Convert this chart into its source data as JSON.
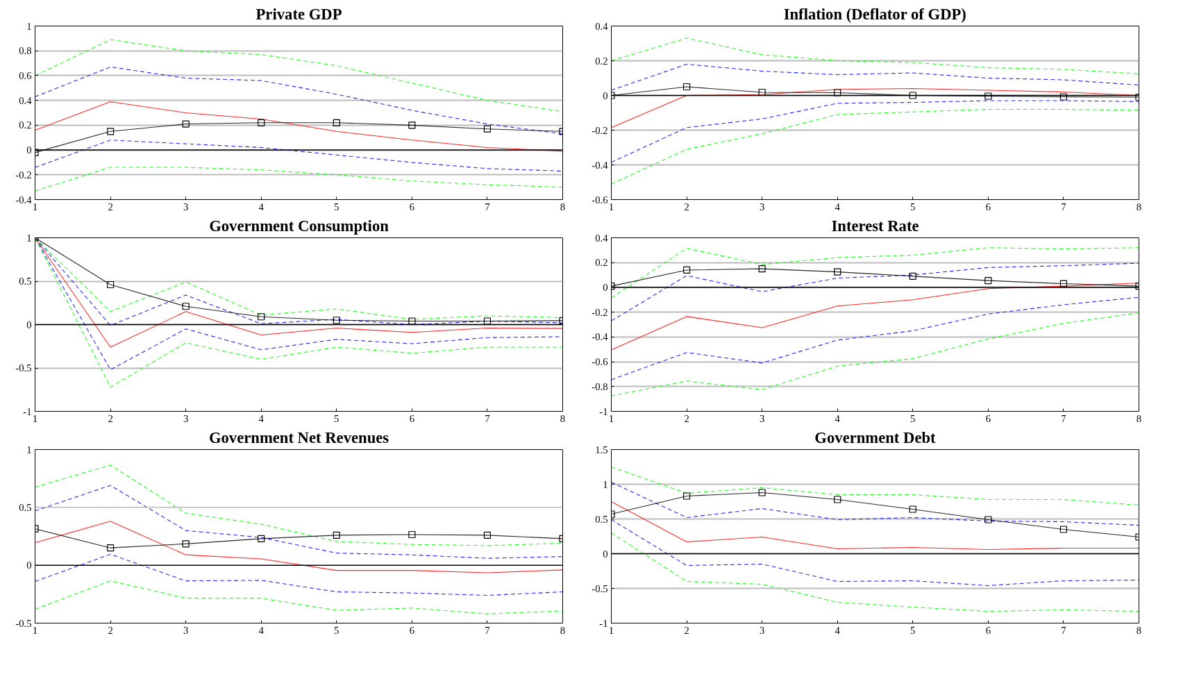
{
  "chart_data": [
    {
      "type": "line",
      "title": "Private GDP",
      "x": [
        1,
        2,
        3,
        4,
        5,
        6,
        7,
        8
      ],
      "xlim": [
        1,
        8
      ],
      "xticks": [
        1,
        2,
        3,
        4,
        5,
        6,
        7,
        8
      ],
      "ylim": [
        -0.4,
        1
      ],
      "yticks": [
        -0.4,
        -0.2,
        0,
        0.2,
        0.4,
        0.6,
        0.8,
        1
      ],
      "grid": "y",
      "ref_lines": [
        {
          "axis": "y",
          "value": 0,
          "color": "#000000"
        }
      ],
      "series": [
        {
          "color": "#00ff00",
          "line_style": "dashed",
          "marker": "none",
          "values": [
            0.6,
            0.89,
            0.8,
            0.77,
            0.68,
            0.54,
            0.4,
            0.31
          ]
        },
        {
          "color": "#0000ff",
          "line_style": "dashed",
          "marker": "none",
          "values": [
            0.43,
            0.67,
            0.58,
            0.56,
            0.45,
            0.32,
            0.21,
            0.13
          ]
        },
        {
          "color": "#ff0000",
          "line_style": "solid",
          "marker": "none",
          "values": [
            0.16,
            0.39,
            0.3,
            0.25,
            0.15,
            0.08,
            0.02,
            -0.01
          ]
        },
        {
          "color": "#000000",
          "line_style": "solid",
          "marker": "square",
          "values": [
            -0.02,
            0.15,
            0.21,
            0.22,
            0.22,
            0.2,
            0.17,
            0.15
          ]
        },
        {
          "color": "#0000ff",
          "line_style": "dashed",
          "marker": "none",
          "values": [
            -0.14,
            0.08,
            0.05,
            0.02,
            -0.04,
            -0.1,
            -0.15,
            -0.17
          ]
        },
        {
          "color": "#00ff00",
          "line_style": "dashed",
          "marker": "none",
          "values": [
            -0.33,
            -0.14,
            -0.14,
            -0.16,
            -0.2,
            -0.25,
            -0.28,
            -0.3
          ]
        }
      ]
    },
    {
      "type": "line",
      "title": "Inflation (Deflator of GDP)",
      "x": [
        1,
        2,
        3,
        4,
        5,
        6,
        7,
        8
      ],
      "xlim": [
        1,
        8
      ],
      "xticks": [
        1,
        2,
        3,
        4,
        5,
        6,
        7,
        8
      ],
      "ylim": [
        -0.6,
        0.4
      ],
      "yticks": [
        -0.6,
        -0.4,
        -0.2,
        0,
        0.2,
        0.4
      ],
      "grid": "y",
      "ref_lines": [
        {
          "axis": "y",
          "value": 0,
          "color": "#000000"
        }
      ],
      "series": [
        {
          "color": "#00ff00",
          "line_style": "dashed",
          "marker": "none",
          "values": [
            0.2,
            0.33,
            0.235,
            0.2,
            0.19,
            0.16,
            0.15,
            0.125
          ]
        },
        {
          "color": "#0000ff",
          "line_style": "dashed",
          "marker": "none",
          "values": [
            0.03,
            0.18,
            0.14,
            0.12,
            0.13,
            0.1,
            0.09,
            0.06
          ]
        },
        {
          "color": "#ff0000",
          "line_style": "solid",
          "marker": "none",
          "values": [
            -0.185,
            0.0,
            0.005,
            0.035,
            0.04,
            0.03,
            0.02,
            0.0
          ]
        },
        {
          "color": "#000000",
          "line_style": "solid",
          "marker": "square",
          "values": [
            0.0,
            0.05,
            0.018,
            0.016,
            0.0,
            -0.004,
            -0.008,
            -0.01
          ]
        },
        {
          "color": "#0000ff",
          "line_style": "dashed",
          "marker": "none",
          "values": [
            -0.385,
            -0.185,
            -0.135,
            -0.045,
            -0.04,
            -0.03,
            -0.03,
            -0.035
          ]
        },
        {
          "color": "#00ff00",
          "line_style": "dashed",
          "marker": "none",
          "values": [
            -0.51,
            -0.31,
            -0.22,
            -0.11,
            -0.095,
            -0.08,
            -0.08,
            -0.085
          ]
        }
      ]
    },
    {
      "type": "line",
      "title": "Government Consumption",
      "x": [
        1,
        2,
        3,
        4,
        5,
        6,
        7,
        8
      ],
      "xlim": [
        1,
        8
      ],
      "xticks": [
        1,
        2,
        3,
        4,
        5,
        6,
        7,
        8
      ],
      "ylim": [
        -1,
        1
      ],
      "yticks": [
        -1,
        -0.5,
        0,
        0.5,
        1
      ],
      "grid": "y",
      "ref_lines": [
        {
          "axis": "y",
          "value": 0,
          "color": "#000000"
        }
      ],
      "series": [
        {
          "color": "#00ff00",
          "line_style": "dashed",
          "marker": "none",
          "values": [
            1.0,
            0.15,
            0.49,
            0.11,
            0.18,
            0.06,
            0.1,
            0.08
          ]
        },
        {
          "color": "#0000ff",
          "line_style": "dashed",
          "marker": "none",
          "values": [
            1.0,
            -0.01,
            0.34,
            0.01,
            0.06,
            0.0,
            0.04,
            0.02
          ]
        },
        {
          "color": "#ff0000",
          "line_style": "solid",
          "marker": "none",
          "values": [
            1.0,
            -0.26,
            0.15,
            -0.12,
            -0.04,
            -0.09,
            -0.04,
            -0.045
          ]
        },
        {
          "color": "#000000",
          "line_style": "solid",
          "marker": "square",
          "values": [
            1.0,
            0.46,
            0.21,
            0.09,
            0.05,
            0.04,
            0.04,
            0.045
          ]
        },
        {
          "color": "#0000ff",
          "line_style": "dashed",
          "marker": "none",
          "values": [
            1.0,
            -0.52,
            -0.05,
            -0.29,
            -0.17,
            -0.22,
            -0.15,
            -0.14
          ]
        },
        {
          "color": "#00ff00",
          "line_style": "dashed",
          "marker": "none",
          "values": [
            1.0,
            -0.72,
            -0.21,
            -0.4,
            -0.26,
            -0.33,
            -0.26,
            -0.26
          ]
        }
      ]
    },
    {
      "type": "line",
      "title": "Interest Rate",
      "x": [
        1,
        2,
        3,
        4,
        5,
        6,
        7,
        8
      ],
      "xlim": [
        1,
        8
      ],
      "xticks": [
        1,
        2,
        3,
        4,
        5,
        6,
        7,
        8
      ],
      "ylim": [
        -1,
        0.4
      ],
      "yticks": [
        -1,
        -0.8,
        -0.6,
        -0.4,
        -0.2,
        0,
        0.2,
        0.4
      ],
      "grid": "y",
      "ref_lines": [
        {
          "axis": "y",
          "value": 0,
          "color": "#000000"
        }
      ],
      "series": [
        {
          "color": "#00ff00",
          "line_style": "dashed",
          "marker": "none",
          "values": [
            -0.085,
            0.315,
            0.185,
            0.24,
            0.26,
            0.32,
            0.31,
            0.32
          ]
        },
        {
          "color": "#0000ff",
          "line_style": "dashed",
          "marker": "none",
          "values": [
            -0.27,
            0.095,
            -0.035,
            0.075,
            0.1,
            0.16,
            0.175,
            0.195
          ]
        },
        {
          "color": "#ff0000",
          "line_style": "solid",
          "marker": "none",
          "values": [
            -0.505,
            -0.235,
            -0.325,
            -0.15,
            -0.1,
            -0.01,
            0.01,
            0.035
          ]
        },
        {
          "color": "#000000",
          "line_style": "solid",
          "marker": "square",
          "values": [
            0.01,
            0.14,
            0.15,
            0.125,
            0.09,
            0.055,
            0.03,
            0.01
          ]
        },
        {
          "color": "#0000ff",
          "line_style": "dashed",
          "marker": "none",
          "values": [
            -0.745,
            -0.525,
            -0.61,
            -0.425,
            -0.35,
            -0.215,
            -0.14,
            -0.08
          ]
        },
        {
          "color": "#00ff00",
          "line_style": "dashed",
          "marker": "none",
          "values": [
            -0.875,
            -0.755,
            -0.825,
            -0.635,
            -0.575,
            -0.415,
            -0.29,
            -0.205
          ]
        }
      ]
    },
    {
      "type": "line",
      "title": "Government Net Revenues",
      "x": [
        1,
        2,
        3,
        4,
        5,
        6,
        7,
        8
      ],
      "xlim": [
        1,
        8
      ],
      "xticks": [
        1,
        2,
        3,
        4,
        5,
        6,
        7,
        8
      ],
      "ylim": [
        -0.5,
        1
      ],
      "yticks": [
        -0.5,
        0,
        0.5,
        1
      ],
      "ref_lines": [
        {
          "axis": "y",
          "value": 0,
          "color": "#000000"
        },
        {
          "axis": "y",
          "value": 0.5,
          "color": "#bbbbbb"
        }
      ],
      "series": [
        {
          "color": "#00ff00",
          "line_style": "dashed",
          "marker": "none",
          "values": [
            0.675,
            0.865,
            0.45,
            0.355,
            0.205,
            0.18,
            0.17,
            0.19
          ]
        },
        {
          "color": "#0000ff",
          "line_style": "dashed",
          "marker": "none",
          "values": [
            0.47,
            0.69,
            0.3,
            0.24,
            0.105,
            0.09,
            0.06,
            0.075
          ]
        },
        {
          "color": "#ff0000",
          "line_style": "solid",
          "marker": "none",
          "values": [
            0.195,
            0.38,
            0.09,
            0.055,
            -0.045,
            -0.045,
            -0.065,
            -0.04
          ]
        },
        {
          "color": "#000000",
          "line_style": "solid",
          "marker": "square",
          "values": [
            0.315,
            0.15,
            0.185,
            0.23,
            0.26,
            0.265,
            0.26,
            0.23
          ]
        },
        {
          "color": "#0000ff",
          "line_style": "dashed",
          "marker": "none",
          "values": [
            -0.14,
            0.095,
            -0.135,
            -0.13,
            -0.23,
            -0.24,
            -0.26,
            -0.23
          ]
        },
        {
          "color": "#00ff00",
          "line_style": "dashed",
          "marker": "none",
          "values": [
            -0.38,
            -0.135,
            -0.285,
            -0.285,
            -0.39,
            -0.37,
            -0.42,
            -0.395
          ]
        }
      ]
    },
    {
      "type": "line",
      "title": "Government Debt",
      "x": [
        1,
        2,
        3,
        4,
        5,
        6,
        7,
        8
      ],
      "xlim": [
        1,
        8
      ],
      "xticks": [
        1,
        2,
        3,
        4,
        5,
        6,
        7,
        8
      ],
      "ylim": [
        -1,
        1.5
      ],
      "yticks": [
        -1,
        -0.5,
        0,
        0.5,
        1,
        1.5
      ],
      "grid": "y",
      "ref_lines": [
        {
          "axis": "y",
          "value": 0,
          "color": "#000000"
        }
      ],
      "series": [
        {
          "color": "#00ff00",
          "line_style": "dashed",
          "marker": "none",
          "values": [
            1.25,
            0.87,
            0.95,
            0.85,
            0.85,
            0.78,
            0.78,
            0.7
          ]
        },
        {
          "color": "#0000ff",
          "line_style": "dashed",
          "marker": "none",
          "values": [
            1.03,
            0.52,
            0.65,
            0.49,
            0.52,
            0.47,
            0.46,
            0.41
          ]
        },
        {
          "color": "#ff0000",
          "line_style": "solid",
          "marker": "none",
          "values": [
            0.75,
            0.17,
            0.24,
            0.07,
            0.09,
            0.06,
            0.08,
            0.08
          ]
        },
        {
          "color": "#000000",
          "line_style": "solid",
          "marker": "square",
          "values": [
            0.57,
            0.83,
            0.88,
            0.78,
            0.64,
            0.49,
            0.35,
            0.24
          ]
        },
        {
          "color": "#0000ff",
          "line_style": "dashed",
          "marker": "none",
          "values": [
            0.49,
            -0.17,
            -0.15,
            -0.4,
            -0.39,
            -0.46,
            -0.39,
            -0.38
          ]
        },
        {
          "color": "#00ff00",
          "line_style": "dashed",
          "marker": "none",
          "values": [
            0.3,
            -0.4,
            -0.44,
            -0.7,
            -0.77,
            -0.83,
            -0.81,
            -0.83
          ]
        }
      ]
    }
  ]
}
